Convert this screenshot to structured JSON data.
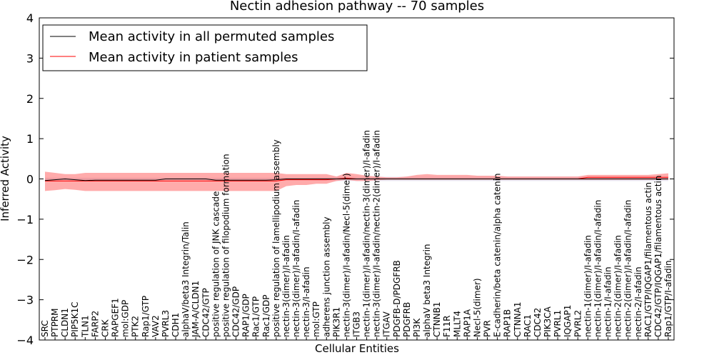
{
  "chart_data": {
    "type": "line",
    "title": "Nectin adhesion pathway -- 70 samples",
    "xlabel": "Cellular Entities",
    "ylabel": "Inferred Activity",
    "ylim": [
      -4,
      4
    ],
    "yticks": [
      -4,
      -3,
      -2,
      -1,
      0,
      1,
      2,
      3,
      4
    ],
    "ytick_labels": [
      "−4",
      "−3",
      "−2",
      "−1",
      "0",
      "1",
      "2",
      "3",
      "4"
    ],
    "legend_position": "top-left",
    "categories": [
      "SRC",
      "PTPRM",
      "CLDN1",
      "PIP5K1C",
      "TLN1",
      "FARP2",
      "CRK",
      "RAPGEF1",
      "mol:GDP",
      "PTK2",
      "Rap1/GTP",
      "VAV2",
      "PVRL3",
      "CDH1",
      "alphaV/beta3 Integrin/Talin",
      "JAM-A/CLDN1",
      "CDC42/GTP",
      "positive regulation of JNK cascade",
      "positive regulation of filopodium formation",
      "CDC42/GDP",
      "RAP1/GDP",
      "Rac1/GTP",
      "Rac1/GDP",
      "positive regulation of lamellipodium assembly",
      "nectin-3(dimer)/I-afadin",
      "nectin-3(dimer)/I-afadin/I-afadin",
      "nectin-3/I-afadin",
      "mol:GTP",
      "adherens junction assembly",
      "PIK3R1",
      "nectin-3(dimer)/I-afadin/Necl-5(dimer)",
      "ITGB3",
      "nectin-1(dimer)/I-afadin/nectin-3(dimer)/I-afadin",
      "nectin-3(dimer)/I-afadin/nectin-2(dimer)/I-afadin",
      "ITGAV",
      "PDGFB-D/PDGFRB",
      "PDGFRB",
      "PI3K",
      "alphaV beta3 Integrin",
      "CTNNB1",
      "F11R",
      "MLLT4",
      "RAP1A",
      "Necl-5(dimer)",
      "PVR",
      "E-cadherin/beta catenin/alpha catenin",
      "RAP1B",
      "CTNNA1",
      "RAC1",
      "CDC42",
      "PIK3CA",
      "PVRL1",
      "IQGAP1",
      "PVRL2",
      "nectin-1(dimer)/I-afadin",
      "nectin-1(dimer)/I-afadin/I-afadin",
      "nectin-1/I-afadin",
      "nectin-2(dimer)/I-afadin",
      "nectin-2(dimer)/I-afadin/I-afadin",
      "nectin-2/I-afadin",
      "RAC1/GTP/IQGAP1/filamentous actin",
      "CDC42/GTP/IQGAP1/filamentous actin",
      "Rap1/GTP/I-afadin"
    ],
    "series": [
      {
        "name": "Mean activity in all permuted samples",
        "color": "#000000",
        "values": [
          -0.04,
          -0.02,
          0.0,
          -0.02,
          -0.04,
          -0.03,
          -0.03,
          -0.03,
          -0.03,
          -0.03,
          -0.03,
          -0.03,
          0.0,
          0.0,
          0.0,
          0.0,
          0.0,
          -0.03,
          -0.03,
          -0.03,
          -0.03,
          -0.03,
          -0.03,
          -0.02,
          0.0,
          0.0,
          0.0,
          0.0,
          0.0,
          0.0,
          0.0,
          0.0,
          0.0,
          0.0,
          0.0,
          0.0,
          0.0,
          0.0,
          0.0,
          0.0,
          0.0,
          0.0,
          0.0,
          0.0,
          0.0,
          0.0,
          0.0,
          0.0,
          0.0,
          0.0,
          0.0,
          0.0,
          0.0,
          0.0,
          0.0,
          0.0,
          0.0,
          0.0,
          0.0,
          0.0,
          0.0,
          0.0,
          0.0
        ],
        "band_lower": [
          -0.03,
          -0.03,
          -0.03,
          -0.03,
          -0.03,
          -0.03,
          -0.03,
          -0.03,
          -0.03,
          -0.03,
          -0.03,
          -0.03,
          -0.03,
          -0.03,
          -0.03,
          -0.03,
          -0.03,
          -0.03,
          -0.03,
          -0.03,
          -0.03,
          -0.03,
          -0.03,
          -0.03,
          -0.03,
          -0.03,
          -0.03,
          -0.04,
          -0.04,
          -0.05,
          -0.05,
          -0.05,
          -0.05,
          -0.05,
          -0.05,
          -0.05,
          -0.05,
          -0.05,
          -0.05,
          -0.05,
          -0.05,
          -0.05,
          -0.05,
          -0.05,
          -0.05,
          -0.05,
          -0.05,
          -0.05,
          -0.05,
          -0.05,
          -0.05,
          -0.05,
          -0.05,
          -0.05,
          -0.05,
          -0.05,
          -0.05,
          -0.05,
          -0.05,
          -0.05,
          -0.05,
          -0.05,
          -0.05
        ],
        "band_upper": [
          0.03,
          0.03,
          0.03,
          0.03,
          0.03,
          0.03,
          0.03,
          0.03,
          0.03,
          0.03,
          0.03,
          0.03,
          0.03,
          0.03,
          0.03,
          0.03,
          0.03,
          0.03,
          0.03,
          0.03,
          0.03,
          0.03,
          0.03,
          0.03,
          0.03,
          0.03,
          0.03,
          0.04,
          0.04,
          0.05,
          0.05,
          0.05,
          0.05,
          0.05,
          0.05,
          0.05,
          0.05,
          0.05,
          0.05,
          0.05,
          0.05,
          0.05,
          0.05,
          0.05,
          0.05,
          0.05,
          0.05,
          0.05,
          0.05,
          0.05,
          0.05,
          0.05,
          0.05,
          0.05,
          0.05,
          0.05,
          0.05,
          0.05,
          0.05,
          0.05,
          0.05,
          0.05,
          0.05
        ],
        "band_color": "#ccccdd"
      },
      {
        "name": "Mean activity in patient samples",
        "color": "#ff0000",
        "values": [
          -0.05,
          -0.05,
          -0.05,
          -0.05,
          -0.05,
          -0.05,
          -0.05,
          -0.05,
          -0.05,
          -0.05,
          -0.05,
          -0.05,
          -0.05,
          -0.05,
          -0.05,
          -0.05,
          -0.05,
          -0.05,
          -0.05,
          -0.05,
          -0.05,
          -0.05,
          -0.05,
          -0.05,
          -0.02,
          -0.02,
          -0.02,
          -0.02,
          -0.02,
          0.0,
          0.02,
          0.0,
          0.0,
          0.0,
          0.0,
          0.0,
          0.0,
          0.0,
          0.0,
          0.0,
          0.0,
          0.0,
          0.0,
          0.0,
          0.0,
          0.0,
          0.0,
          0.0,
          0.0,
          0.0,
          0.0,
          0.0,
          0.0,
          0.0,
          0.04,
          0.04,
          0.04,
          0.04,
          0.04,
          0.04,
          0.04,
          0.04,
          0.04
        ],
        "band_lower": [
          -0.3,
          -0.28,
          -0.25,
          -0.27,
          -0.3,
          -0.3,
          -0.3,
          -0.3,
          -0.3,
          -0.3,
          -0.3,
          -0.3,
          -0.3,
          -0.3,
          -0.3,
          -0.3,
          -0.3,
          -0.3,
          -0.3,
          -0.3,
          -0.3,
          -0.3,
          -0.3,
          -0.3,
          -0.18,
          -0.15,
          -0.15,
          -0.12,
          -0.12,
          -0.05,
          -0.02,
          -0.05,
          -0.05,
          -0.03,
          -0.02,
          -0.02,
          -0.02,
          -0.02,
          -0.02,
          -0.02,
          -0.02,
          -0.02,
          -0.02,
          -0.02,
          -0.02,
          -0.02,
          -0.02,
          -0.02,
          -0.02,
          -0.02,
          -0.02,
          -0.02,
          -0.02,
          -0.02,
          -0.02,
          -0.02,
          -0.02,
          -0.02,
          -0.02,
          -0.02,
          -0.02,
          -0.02,
          -0.02
        ],
        "band_upper": [
          0.18,
          0.15,
          0.12,
          0.12,
          0.15,
          0.15,
          0.15,
          0.15,
          0.15,
          0.15,
          0.15,
          0.15,
          0.15,
          0.15,
          0.15,
          0.15,
          0.15,
          0.15,
          0.15,
          0.15,
          0.15,
          0.15,
          0.15,
          0.15,
          0.12,
          0.12,
          0.12,
          0.12,
          0.12,
          0.06,
          0.15,
          0.12,
          0.08,
          0.06,
          0.04,
          0.04,
          0.06,
          0.1,
          0.12,
          0.1,
          0.1,
          0.1,
          0.1,
          0.08,
          0.08,
          0.08,
          0.06,
          0.06,
          0.06,
          0.06,
          0.06,
          0.06,
          0.06,
          0.06,
          0.1,
          0.1,
          0.1,
          0.1,
          0.1,
          0.1,
          0.1,
          0.12,
          0.14
        ],
        "band_color": "#ff6666"
      }
    ]
  }
}
